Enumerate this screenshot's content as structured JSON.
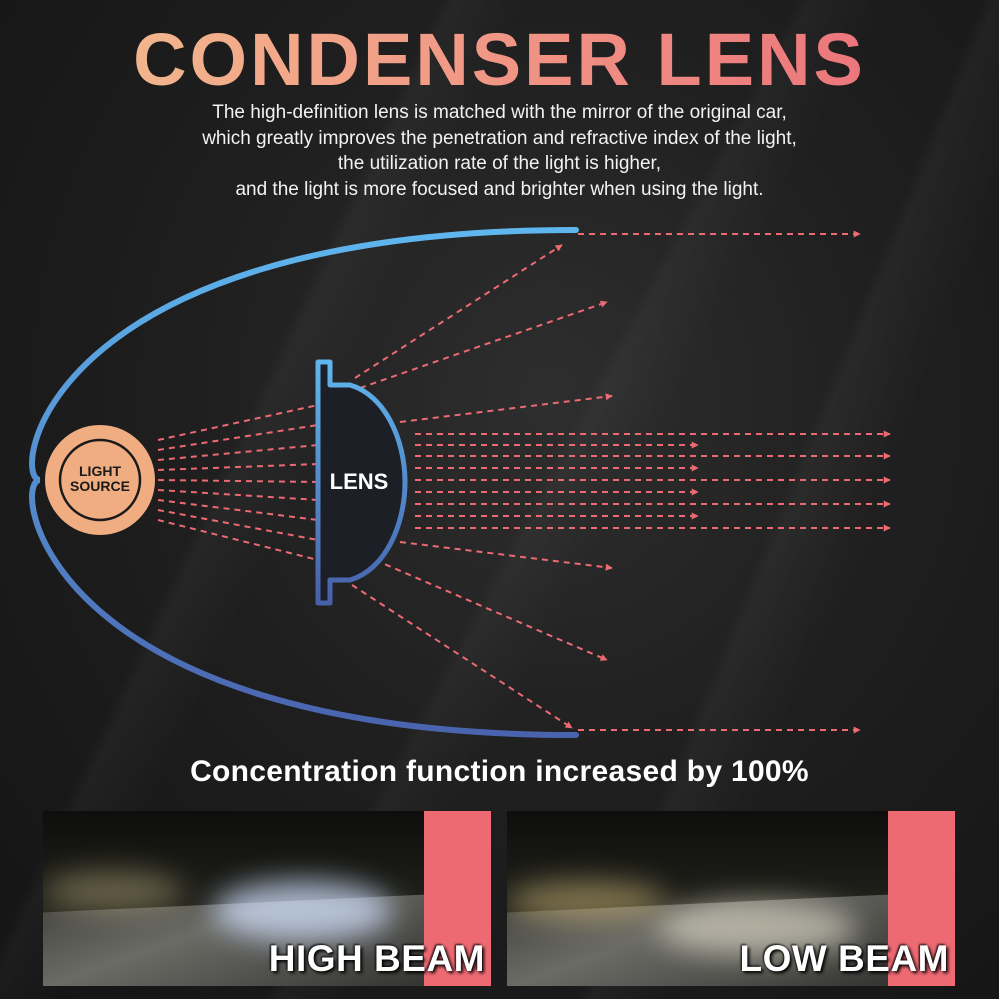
{
  "header": {
    "title": "CONDENSER LENS",
    "description_lines": [
      "The high-definition lens is matched with the mirror of the original car,",
      "which greatly improves the penetration and refractive index of the light,",
      "the utilization rate of the light is higher,",
      "and the light is more focused and brighter when using the light."
    ]
  },
  "diagram": {
    "light_source_label_line1": "LIGHT",
    "light_source_label_line2": "SOURCE",
    "lens_label": "LENS",
    "colors": {
      "reflector_top": "#5fb3ec",
      "reflector_bottom": "#4a6bb3",
      "ray": "#ee6a73",
      "source_fill": "#f1ad82"
    }
  },
  "concentration_text": "Concentration function increased by 100%",
  "photos": {
    "high_beam_label": "HIGH BEAM",
    "low_beam_label": "LOW BEAM",
    "accent_color": "#ee6a73"
  }
}
